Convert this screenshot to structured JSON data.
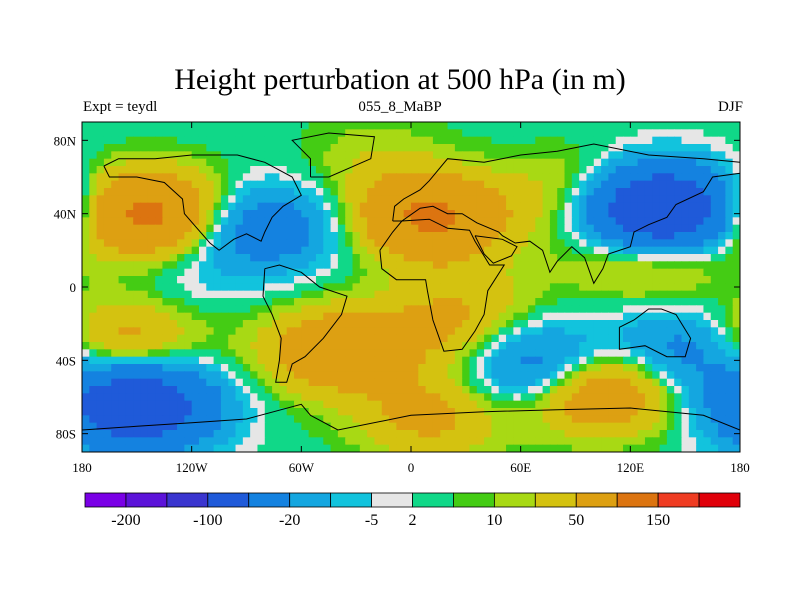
{
  "chart_data": {
    "type": "heatmap",
    "title": "Height perturbation at 500 hPa (in m)",
    "subtitle_left": "Expt = teydl",
    "subtitle_center": "055_8_MaBP",
    "subtitle_right": "DJF",
    "x_ticks": [
      "180",
      "120W",
      "60W",
      "0",
      "60E",
      "120E",
      "180"
    ],
    "x_tick_values": [
      -180,
      -120,
      -60,
      0,
      60,
      120,
      180
    ],
    "y_ticks": [
      "80N",
      "40N",
      "0",
      "40S",
      "80S"
    ],
    "y_tick_values": [
      80,
      40,
      0,
      -40,
      -80
    ],
    "xlim": [
      -180,
      180
    ],
    "ylim": [
      -90,
      90
    ],
    "colorbar": {
      "colors": [
        "#7a00e6",
        "#5c13d9",
        "#3a35cf",
        "#1f5ad9",
        "#1482e0",
        "#14a6e0",
        "#12c3dd",
        "#e6e6e6",
        "#10d888",
        "#44cc14",
        "#a8d914",
        "#d4c210",
        "#dda012",
        "#dc7410",
        "#ef3c22",
        "#e0000a"
      ],
      "labels": [
        "-200",
        "-100",
        "-20",
        "-5",
        "2",
        "10",
        "50",
        "150"
      ],
      "label_after_box": [
        1,
        3,
        5,
        7,
        8,
        10,
        12,
        14
      ]
    },
    "anomalies": [
      {
        "lon": -145,
        "lat": 40,
        "value": 60
      },
      {
        "lon": -80,
        "lat": 32,
        "value": -35
      },
      {
        "lon": 10,
        "lat": 38,
        "value": 55
      },
      {
        "lon": 135,
        "lat": 42,
        "value": -110
      },
      {
        "lon": -20,
        "lat": 70,
        "value": 8
      },
      {
        "lon": 95,
        "lat": 50,
        "value": 20
      },
      {
        "lon": 130,
        "lat": 18,
        "value": 25
      },
      {
        "lon": -120,
        "lat": 8,
        "value": -6
      },
      {
        "lon": 40,
        "lat": 0,
        "value": 6
      },
      {
        "lon": -160,
        "lat": -30,
        "value": 30
      },
      {
        "lon": -40,
        "lat": -35,
        "value": 40
      },
      {
        "lon": 20,
        "lat": -20,
        "value": 20
      },
      {
        "lon": 75,
        "lat": -45,
        "value": -45
      },
      {
        "lon": -150,
        "lat": -65,
        "value": -90
      },
      {
        "lon": 100,
        "lat": -55,
        "value": 55
      },
      {
        "lon": 10,
        "lat": -70,
        "value": 25
      },
      {
        "lon": 150,
        "lat": -35,
        "value": -30
      }
    ]
  }
}
